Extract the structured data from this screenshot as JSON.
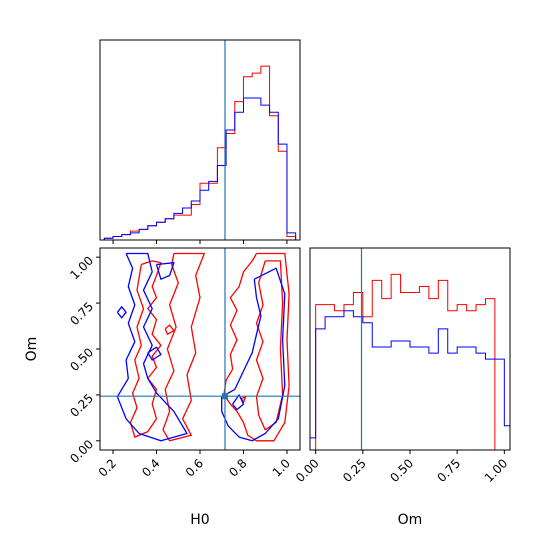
{
  "chart_data": [
    {
      "panel": "H0 marginal",
      "type": "histogram",
      "x_axis": "H0",
      "xlim": [
        0.14,
        1.06
      ],
      "truth": 0.715,
      "truth_color": "#1f77b4",
      "bin_edges": [
        0.16,
        0.2,
        0.24,
        0.28,
        0.32,
        0.36,
        0.4,
        0.44,
        0.48,
        0.52,
        0.56,
        0.6,
        0.64,
        0.68,
        0.72,
        0.76,
        0.8,
        0.84,
        0.88,
        0.92,
        0.96,
        1.0,
        1.04
      ],
      "series": [
        {
          "name": "",
          "color": "#ff0000",
          "values": [
            0.5,
            1,
            1.5,
            2.5,
            3,
            4,
            5,
            6,
            7,
            7,
            10,
            16,
            16,
            26,
            30,
            39,
            46,
            47,
            49,
            35,
            25,
            1
          ]
        },
        {
          "name": "",
          "color": "#0000ff",
          "values": [
            0.5,
            1,
            1.5,
            2,
            3,
            4,
            5,
            6,
            7.5,
            9,
            11,
            14,
            16.5,
            21,
            31,
            36,
            40,
            40,
            38,
            36,
            27,
            2
          ]
        }
      ]
    },
    {
      "panel": "H0 vs Om joint",
      "type": "contour",
      "x_axis": "H0",
      "y_axis": "Om",
      "xlim": [
        0.14,
        1.06
      ],
      "ylim": [
        -0.05,
        1.05
      ],
      "xticks": [
        "0.2",
        "0.4",
        "0.6",
        "0.8",
        "1.0"
      ],
      "yticks": [
        "0.00",
        "0.25",
        "0.50",
        "0.75",
        "1.00"
      ],
      "xlabel": "H0",
      "ylabel": "Om",
      "truth": [
        0.715,
        0.243
      ],
      "truth_color": "#1f77b4",
      "series": [
        {
          "name": "",
          "color": "#ff0000",
          "contours": [
            [
              [
                0.33,
                0.96
              ],
              [
                0.38,
                0.98
              ],
              [
                0.42,
                0.97
              ],
              [
                0.4,
                0.9
              ],
              [
                0.38,
                0.84
              ],
              [
                0.4,
                0.78
              ],
              [
                0.36,
                0.72
              ],
              [
                0.4,
                0.66
              ],
              [
                0.38,
                0.58
              ],
              [
                0.42,
                0.52
              ],
              [
                0.38,
                0.46
              ],
              [
                0.4,
                0.4
              ],
              [
                0.36,
                0.34
              ],
              [
                0.4,
                0.28
              ],
              [
                0.38,
                0.2
              ],
              [
                0.4,
                0.12
              ],
              [
                0.36,
                0.05
              ],
              [
                0.3,
                0.02
              ],
              [
                0.28,
                0.1
              ],
              [
                0.31,
                0.18
              ],
              [
                0.29,
                0.26
              ],
              [
                0.32,
                0.34
              ],
              [
                0.3,
                0.44
              ],
              [
                0.33,
                0.52
              ],
              [
                0.31,
                0.62
              ],
              [
                0.34,
                0.72
              ],
              [
                0.31,
                0.82
              ],
              [
                0.33,
                0.96
              ]
            ],
            [
              [
                0.48,
                1.02
              ],
              [
                0.62,
                1.02
              ],
              [
                0.58,
                0.9
              ],
              [
                0.6,
                0.78
              ],
              [
                0.56,
                0.62
              ],
              [
                0.58,
                0.48
              ],
              [
                0.54,
                0.36
              ],
              [
                0.56,
                0.22
              ],
              [
                0.52,
                0.12
              ],
              [
                0.56,
                0.03
              ],
              [
                0.46,
                0.0
              ],
              [
                0.43,
                0.06
              ],
              [
                0.46,
                0.16
              ],
              [
                0.44,
                0.28
              ],
              [
                0.48,
                0.38
              ],
              [
                0.45,
                0.5
              ],
              [
                0.49,
                0.62
              ],
              [
                0.46,
                0.74
              ],
              [
                0.5,
                0.86
              ],
              [
                0.47,
                0.96
              ],
              [
                0.48,
                1.02
              ]
            ],
            [
              [
                0.86,
                1.02
              ],
              [
                0.99,
                1.02
              ],
              [
                1.01,
                0.8
              ],
              [
                1.0,
                0.55
              ],
              [
                1.01,
                0.3
              ],
              [
                0.99,
                0.1
              ],
              [
                0.94,
                0.0
              ],
              [
                0.86,
                0.0
              ],
              [
                0.82,
                0.03
              ],
              [
                0.8,
                0.1
              ],
              [
                0.77,
                0.16
              ],
              [
                0.74,
                0.2
              ],
              [
                0.71,
                0.25
              ],
              [
                0.72,
                0.33
              ],
              [
                0.75,
                0.39
              ],
              [
                0.74,
                0.47
              ],
              [
                0.77,
                0.55
              ],
              [
                0.74,
                0.63
              ],
              [
                0.77,
                0.71
              ],
              [
                0.74,
                0.78
              ],
              [
                0.78,
                0.84
              ],
              [
                0.8,
                0.92
              ],
              [
                0.84,
                0.98
              ],
              [
                0.86,
                1.02
              ]
            ],
            [
              [
                0.9,
                0.98
              ],
              [
                0.97,
                0.98
              ],
              [
                0.98,
                0.75
              ],
              [
                0.97,
                0.5
              ],
              [
                0.98,
                0.25
              ],
              [
                0.95,
                0.1
              ],
              [
                0.9,
                0.06
              ],
              [
                0.87,
                0.14
              ],
              [
                0.86,
                0.24
              ],
              [
                0.89,
                0.34
              ],
              [
                0.86,
                0.44
              ],
              [
                0.89,
                0.54
              ],
              [
                0.86,
                0.64
              ],
              [
                0.89,
                0.74
              ],
              [
                0.87,
                0.86
              ],
              [
                0.9,
                0.98
              ]
            ],
            [
              [
                0.44,
                0.61
              ],
              [
                0.46,
                0.63
              ],
              [
                0.48,
                0.6
              ],
              [
                0.45,
                0.58
              ],
              [
                0.44,
                0.61
              ]
            ],
            [
              [
                0.79,
                0.23
              ],
              [
                0.81,
                0.24
              ],
              [
                0.8,
                0.21
              ],
              [
                0.79,
                0.23
              ]
            ]
          ]
        },
        {
          "name": "",
          "color": "#0000ff",
          "contours": [
            [
              [
                0.26,
                1.02
              ],
              [
                0.36,
                1.02
              ],
              [
                0.38,
                0.92
              ],
              [
                0.34,
                0.82
              ],
              [
                0.38,
                0.72
              ],
              [
                0.34,
                0.62
              ],
              [
                0.38,
                0.52
              ],
              [
                0.34,
                0.42
              ],
              [
                0.36,
                0.34
              ],
              [
                0.4,
                0.26
              ],
              [
                0.48,
                0.16
              ],
              [
                0.54,
                0.04
              ],
              [
                0.42,
                0.0
              ],
              [
                0.32,
                0.04
              ],
              [
                0.26,
                0.12
              ],
              [
                0.22,
                0.24
              ],
              [
                0.27,
                0.34
              ],
              [
                0.26,
                0.44
              ],
              [
                0.3,
                0.54
              ],
              [
                0.27,
                0.64
              ],
              [
                0.3,
                0.74
              ],
              [
                0.27,
                0.84
              ],
              [
                0.29,
                0.94
              ],
              [
                0.26,
                1.02
              ]
            ],
            [
              [
                0.4,
                0.96
              ],
              [
                0.48,
                0.97
              ],
              [
                0.46,
                0.9
              ],
              [
                0.42,
                0.88
              ],
              [
                0.4,
                0.96
              ]
            ],
            [
              [
                0.22,
                0.7
              ],
              [
                0.24,
                0.73
              ],
              [
                0.26,
                0.7
              ],
              [
                0.24,
                0.67
              ],
              [
                0.22,
                0.7
              ]
            ],
            [
              [
                0.36,
                0.48
              ],
              [
                0.4,
                0.51
              ],
              [
                0.42,
                0.47
              ],
              [
                0.38,
                0.44
              ],
              [
                0.36,
                0.48
              ]
            ],
            [
              [
                0.85,
                0.88
              ],
              [
                0.95,
                0.94
              ],
              [
                0.99,
                0.8
              ],
              [
                0.98,
                0.55
              ],
              [
                0.99,
                0.3
              ],
              [
                0.96,
                0.12
              ],
              [
                0.9,
                0.04
              ],
              [
                0.84,
                0.0
              ],
              [
                0.78,
                0.02
              ],
              [
                0.73,
                0.08
              ],
              [
                0.7,
                0.16
              ],
              [
                0.7,
                0.24
              ],
              [
                0.76,
                0.28
              ],
              [
                0.8,
                0.38
              ],
              [
                0.84,
                0.48
              ],
              [
                0.86,
                0.58
              ],
              [
                0.88,
                0.68
              ],
              [
                0.86,
                0.78
              ],
              [
                0.85,
                0.88
              ]
            ],
            [
              [
                0.75,
                0.2
              ],
              [
                0.78,
                0.25
              ],
              [
                0.8,
                0.2
              ],
              [
                0.77,
                0.17
              ],
              [
                0.75,
                0.2
              ]
            ]
          ]
        }
      ]
    },
    {
      "panel": "Om marginal",
      "type": "histogram",
      "x_axis": "Om",
      "xlim": [
        -0.03,
        1.03
      ],
      "xticks": [
        "0.00",
        "0.25",
        "0.50",
        "0.75",
        "1.00"
      ],
      "xlabel": "Om",
      "truth": 0.243,
      "truth_color": "#1f77b4",
      "bin_edges": [
        -0.03,
        0.0,
        0.05,
        0.1,
        0.15,
        0.2,
        0.25,
        0.3,
        0.35,
        0.4,
        0.45,
        0.5,
        0.55,
        0.6,
        0.65,
        0.7,
        0.75,
        0.8,
        0.85,
        0.9,
        0.95,
        1.0,
        1.03
      ],
      "series": [
        {
          "name": "",
          "color": "#ff0000",
          "values": [
            0,
            24,
            24,
            23,
            24,
            26,
            22,
            28,
            25,
            29,
            26,
            26,
            27,
            25,
            28,
            23,
            24,
            23,
            24,
            25,
            0,
            0
          ]
        },
        {
          "name": "",
          "color": "#0000ff",
          "values": [
            2,
            20,
            22,
            22,
            23,
            22,
            21,
            17,
            17,
            18,
            18,
            17,
            17,
            16,
            20,
            16,
            17,
            17,
            16,
            15,
            15,
            4
          ]
        }
      ]
    }
  ]
}
